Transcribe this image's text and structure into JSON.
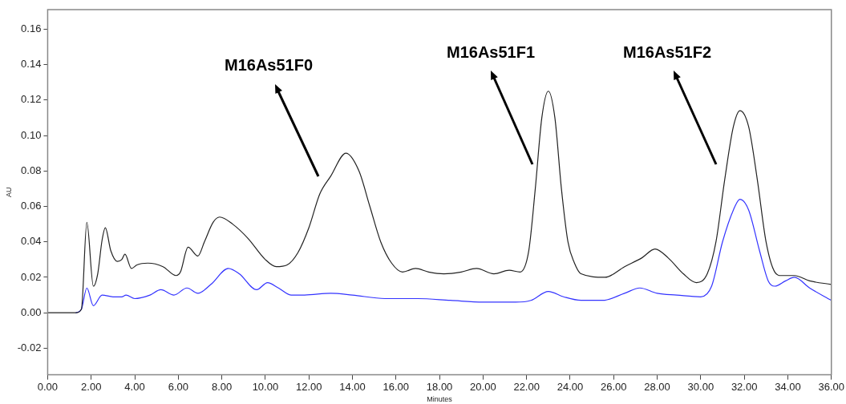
{
  "chart_data": {
    "type": "line",
    "xlabel": "Minutes",
    "ylabel": "AU",
    "xlim": [
      0,
      36
    ],
    "ylim": [
      -0.035,
      0.171
    ],
    "xticks": [
      {
        "value": 0,
        "label": "0.00"
      },
      {
        "value": 2,
        "label": "2.00"
      },
      {
        "value": 4,
        "label": "4.00"
      },
      {
        "value": 6,
        "label": "6.00"
      },
      {
        "value": 8,
        "label": "8.00"
      },
      {
        "value": 10,
        "label": "10.00"
      },
      {
        "value": 12,
        "label": "12.00"
      },
      {
        "value": 14,
        "label": "14.00"
      },
      {
        "value": 16,
        "label": "16.00"
      },
      {
        "value": 18,
        "label": "18.00"
      },
      {
        "value": 20,
        "label": "20.00"
      },
      {
        "value": 22,
        "label": "22.00"
      },
      {
        "value": 24,
        "label": "24.00"
      },
      {
        "value": 26,
        "label": "26.00"
      },
      {
        "value": 28,
        "label": "28.00"
      },
      {
        "value": 30,
        "label": "30.00"
      },
      {
        "value": 32,
        "label": "32.00"
      },
      {
        "value": 34,
        "label": "34.00"
      },
      {
        "value": 36,
        "label": "36.00"
      }
    ],
    "yticks": [
      {
        "value": -0.02,
        "label": "-0.02"
      },
      {
        "value": 0,
        "label": "0.00"
      },
      {
        "value": 0.02,
        "label": "0.02"
      },
      {
        "value": 0.04,
        "label": "0.04"
      },
      {
        "value": 0.06,
        "label": "0.06"
      },
      {
        "value": 0.08,
        "label": "0.08"
      },
      {
        "value": 0.1,
        "label": "0.10"
      },
      {
        "value": 0.12,
        "label": "0.12"
      },
      {
        "value": 0.14,
        "label": "0.14"
      },
      {
        "value": 0.16,
        "label": "0.16"
      }
    ],
    "grid": false,
    "legend": false,
    "marker": "none",
    "line_style": "solid",
    "series": [
      {
        "color": "#222222",
        "x": [
          0,
          1.3,
          1.55,
          1.8,
          2.1,
          2.3,
          2.5,
          2.65,
          2.9,
          3.2,
          3.4,
          3.55,
          3.85,
          4.1,
          4.6,
          5.3,
          5.9,
          6.1,
          6.45,
          6.9,
          7.2,
          7.6,
          7.9,
          8.5,
          9.2,
          10,
          10.5,
          11,
          11.5,
          12,
          12.5,
          13,
          13.7,
          14.3,
          14.8,
          15.3,
          15.8,
          16.3,
          16.9,
          17.5,
          18.2,
          19,
          19.7,
          20.5,
          21.2,
          21.7,
          22.1,
          22.4,
          22.7,
          23,
          23.3,
          23.6,
          23.9,
          24.2,
          24.5,
          25.6,
          26.5,
          27.3,
          27.9,
          28.5,
          29.2,
          29.8,
          30.3,
          30.7,
          31.1,
          31.5,
          31.8,
          32.2,
          32.6,
          33,
          33.4,
          33.7,
          34.3,
          35,
          36
        ],
        "values": [
          0,
          0,
          0.002,
          0.051,
          0.015,
          0.022,
          0.041,
          0.048,
          0.035,
          0.029,
          0.03,
          0.033,
          0.025,
          0.027,
          0.028,
          0.026,
          0.021,
          0.023,
          0.037,
          0.032,
          0.04,
          0.051,
          0.054,
          0.05,
          0.042,
          0.03,
          0.026,
          0.027,
          0.034,
          0.048,
          0.067,
          0.077,
          0.09,
          0.08,
          0.06,
          0.04,
          0.028,
          0.023,
          0.025,
          0.023,
          0.022,
          0.023,
          0.025,
          0.022,
          0.024,
          0.023,
          0.035,
          0.07,
          0.11,
          0.125,
          0.11,
          0.07,
          0.04,
          0.028,
          0.022,
          0.02,
          0.026,
          0.031,
          0.036,
          0.031,
          0.022,
          0.017,
          0.022,
          0.04,
          0.075,
          0.105,
          0.114,
          0.105,
          0.075,
          0.04,
          0.023,
          0.021,
          0.021,
          0.018,
          0.016
        ]
      },
      {
        "color": "#3333ff",
        "x": [
          1.3,
          1.55,
          1.8,
          2.1,
          2.5,
          3,
          3.4,
          3.6,
          4,
          4.7,
          5.2,
          5.8,
          6.4,
          6.9,
          7.5,
          8.3,
          8.8,
          9.6,
          10.1,
          10.6,
          11.2,
          11.8,
          13,
          14,
          15.5,
          17,
          18.5,
          20,
          21.5,
          22.2,
          23,
          23.7,
          24.5,
          25.5,
          26.5,
          27.2,
          28,
          28.9,
          30,
          30.5,
          31,
          31.5,
          31.8,
          32.2,
          32.7,
          33.1,
          33.4,
          33.9,
          34.3,
          35,
          36
        ],
        "values": [
          0,
          0.002,
          0.014,
          0.004,
          0.01,
          0.009,
          0.009,
          0.01,
          0.008,
          0.01,
          0.013,
          0.01,
          0.014,
          0.011,
          0.016,
          0.025,
          0.022,
          0.013,
          0.017,
          0.014,
          0.01,
          0.01,
          0.011,
          0.01,
          0.008,
          0.008,
          0.007,
          0.006,
          0.006,
          0.007,
          0.012,
          0.009,
          0.007,
          0.007,
          0.011,
          0.014,
          0.011,
          0.01,
          0.009,
          0.015,
          0.04,
          0.058,
          0.064,
          0.058,
          0.035,
          0.018,
          0.015,
          0.018,
          0.02,
          0.014,
          0.007
        ]
      }
    ],
    "annotations": [
      "M16As51F0",
      "M16As51F1",
      "M16As51F2"
    ]
  }
}
